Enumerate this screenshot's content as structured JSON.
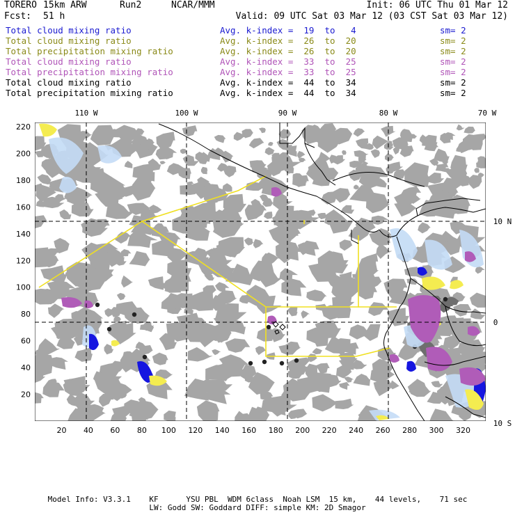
{
  "header": {
    "model": "TORERO",
    "grid": "15km ARW",
    "run": "Run2",
    "org": "NCAR/MMM",
    "init": "Init: 06 UTC Thu 01 Mar 12",
    "fcst_label": "Fcst:",
    "fcst_value": "51 h",
    "valid": "Valid: 09 UTC Sat 03 Mar 12 (03 CST Sat 03 Mar 12)"
  },
  "legend": [
    {
      "field": "Total cloud mixing ratio",
      "index": "Avg. k-index =  19  to   4",
      "sm": "sm= 2",
      "color": "#1a1ad0"
    },
    {
      "field": "Total cloud mixing ratio",
      "index": "Avg. k-index =  26  to  20",
      "sm": "sm= 2",
      "color": "#8a8a18"
    },
    {
      "field": "Total precipitation mixing ratio",
      "index": "Avg. k-index =  26  to  20",
      "sm": "sm= 2",
      "color": "#8a8a18"
    },
    {
      "field": "Total cloud mixing ratio",
      "index": "Avg. k-index =  33  to  25",
      "sm": "sm= 2",
      "color": "#b054b8"
    },
    {
      "field": "Total precipitation mixing ratio",
      "index": "Avg. k-index =  33  to  25",
      "sm": "sm= 2",
      "color": "#b054b8"
    },
    {
      "field": "Total cloud mixing ratio",
      "index": "Avg. k-index =  44  to  34",
      "sm": "sm= 2",
      "color": "#000000"
    },
    {
      "field": "Total precipitation mixing ratio",
      "index": "Avg. k-index =  44  to  34",
      "sm": "sm= 2",
      "color": "#000000"
    }
  ],
  "map": {
    "top_lon_labels": [
      "110 W",
      "100 W",
      "90 W",
      "80 W",
      "70 W"
    ],
    "right_lat_labels": [
      "10 N",
      "0",
      "10 S"
    ],
    "y_grid_labels": [
      "20",
      "40",
      "60",
      "80",
      "100",
      "120",
      "140",
      "160",
      "180",
      "200",
      "220"
    ],
    "x_grid_labels": [
      "20",
      "40",
      "60",
      "80",
      "100",
      "120",
      "140",
      "160",
      "180",
      "200",
      "220",
      "240",
      "260",
      "280",
      "300",
      "320"
    ]
  },
  "footer": {
    "line1": "Model Info: V3.3.1    KF      YSU PBL  WDM 6class  Noah LSM  15 km,    44 levels,    71 sec",
    "line2": "LW: Godd SW: Goddard DIFF: simple KM: 2D Smagor"
  },
  "colors": {
    "cloud_gray": "#a6a6a6",
    "cloud_gray_dark": "#6e6e6e",
    "yellow": "#f4ec50",
    "blue_light": "#c4dcf6",
    "blue": "#1616e0",
    "purple": "#b05cb8"
  }
}
